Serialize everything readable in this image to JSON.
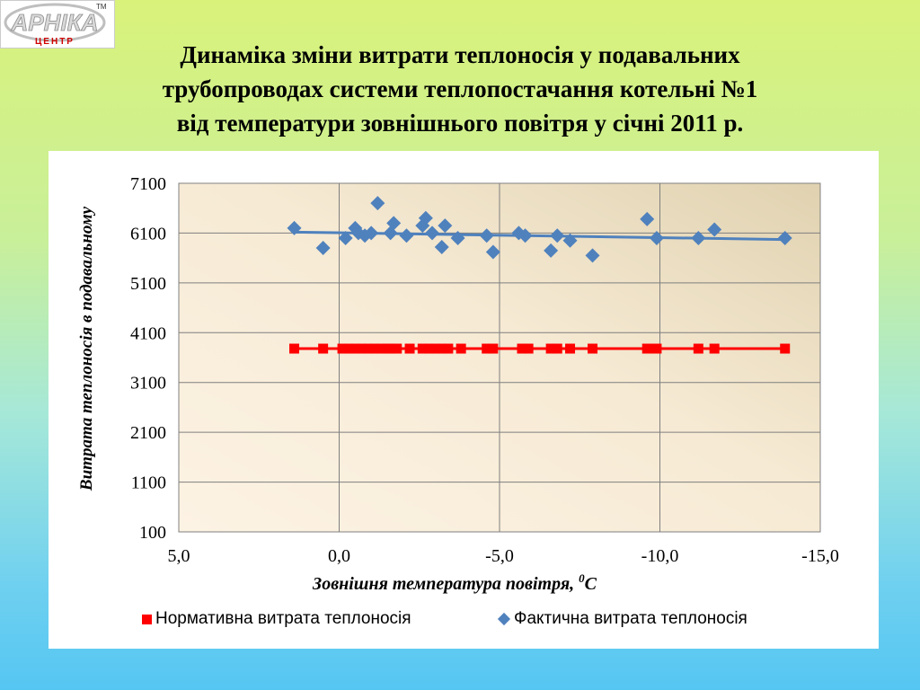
{
  "logo": {
    "brand": "АРНІКА",
    "sub": "ЦЕНТР",
    "tm": "TM"
  },
  "title": {
    "line1": "Динаміка зміни витрати теплоносія у подавальних",
    "line2": "трубопроводах системи теплопостачання котельні №1",
    "line3": "від температури зовнішнього повітря у січні 2011 р."
  },
  "chart_data": {
    "type": "scatter",
    "xlabel": "Зовнішня  температура повітря, ",
    "xlabel_sup": "0",
    "xlabel_unit": "C",
    "ylabel": "Витрата теплоносія в подавальному",
    "xlim": [
      5.0,
      -15.0
    ],
    "ylim": [
      100,
      7100
    ],
    "x_ticks": [
      5.0,
      0.0,
      -5.0,
      -10.0,
      -15.0
    ],
    "x_tick_labels": [
      "5,0",
      "0,0",
      "-5,0",
      "-10,0",
      "-15,0"
    ],
    "y_ticks": [
      100,
      1100,
      2100,
      3100,
      4100,
      5100,
      6100,
      7100
    ],
    "y_tick_labels": [
      "100",
      "1100",
      "2100",
      "3100",
      "4100",
      "5100",
      "6100",
      "7100"
    ],
    "grid": true,
    "legend_position": "bottom",
    "series": [
      {
        "name": "Нормативна витрата теплоносія",
        "marker": "square",
        "color": "#ff0000",
        "line": true,
        "x": [
          1.4,
          0.5,
          -0.1,
          -0.3,
          -0.5,
          -0.7,
          -0.9,
          -1.1,
          -1.3,
          -1.5,
          -1.6,
          -1.8,
          -2.2,
          -2.6,
          -2.8,
          -3.0,
          -3.2,
          -3.4,
          -3.8,
          -4.6,
          -4.8,
          -5.7,
          -5.9,
          -6.6,
          -6.8,
          -7.2,
          -7.9,
          -9.6,
          -9.9,
          -11.2,
          -11.7,
          -13.9
        ],
        "y": [
          3780,
          3780,
          3780,
          3780,
          3780,
          3780,
          3780,
          3780,
          3780,
          3780,
          3780,
          3780,
          3780,
          3780,
          3780,
          3780,
          3780,
          3780,
          3780,
          3780,
          3780,
          3780,
          3780,
          3780,
          3780,
          3780,
          3780,
          3780,
          3780,
          3780,
          3780,
          3780
        ]
      },
      {
        "name": "Фактична витрата теплоносія",
        "marker": "diamond",
        "color": "#4f81bd",
        "line": false,
        "x": [
          1.4,
          0.5,
          -0.2,
          -0.5,
          -0.6,
          -0.8,
          -1.0,
          -1.2,
          -1.6,
          -1.7,
          -2.1,
          -2.6,
          -2.7,
          -2.9,
          -3.2,
          -3.3,
          -3.7,
          -4.6,
          -4.8,
          -5.6,
          -5.8,
          -6.6,
          -6.8,
          -7.2,
          -7.9,
          -9.6,
          -9.9,
          -11.2,
          -11.7,
          -13.9
        ],
        "y": [
          6200,
          5800,
          6000,
          6200,
          6100,
          6050,
          6100,
          6700,
          6100,
          6300,
          6050,
          6250,
          6400,
          6100,
          5820,
          6250,
          6000,
          6050,
          5720,
          6100,
          6050,
          5750,
          6050,
          5950,
          5650,
          6380,
          6000,
          6000,
          6170,
          6000
        ]
      },
      {
        "name": "",
        "type": "trendline",
        "color": "#4f81bd",
        "x": [
          1.4,
          -13.9
        ],
        "y": [
          6120,
          5970
        ]
      }
    ]
  }
}
